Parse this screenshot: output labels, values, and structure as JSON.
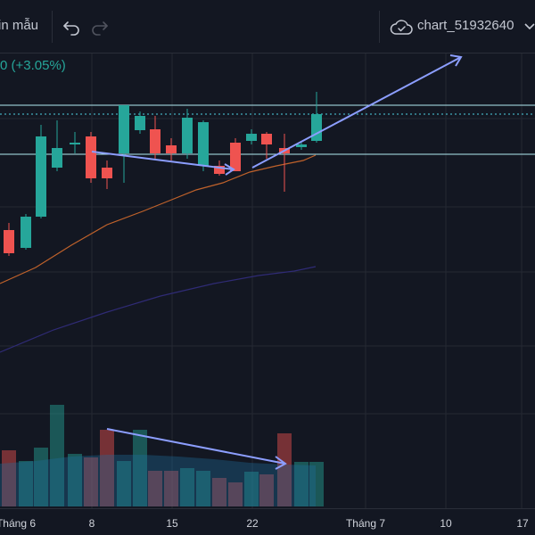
{
  "toolbar": {
    "template_label": "in mẫu",
    "chart_name": "chart_51932640"
  },
  "legend": {
    "change_text": "0 (+3.05%)"
  },
  "colors": {
    "background": "#131722",
    "grid": "#262a35",
    "up": "#26a69a",
    "down": "#ef5350",
    "ma_fast": "#c0622b",
    "ma_slow": "#2f2b75",
    "level_line": "#b2ebf2",
    "level_line_dashed": "#4dd0e1",
    "arrow": "#8c9eff",
    "positive_text": "#26a69a"
  },
  "icons": {
    "undo": "undo-icon",
    "redo": "redo-icon",
    "cloud": "cloud-icon",
    "chevron": "chevron-down-icon"
  },
  "axis": {
    "ticks": [
      "Tháng 6",
      "8",
      "15",
      "22",
      "Tháng 7",
      "10",
      "17"
    ]
  },
  "candles": [
    {
      "dir": "down"
    },
    {
      "dir": "up"
    },
    {
      "dir": "up"
    },
    {
      "dir": "up"
    },
    {
      "dir": "up"
    },
    {
      "dir": "down"
    },
    {
      "dir": "down"
    },
    {
      "dir": "up"
    },
    {
      "dir": "up"
    },
    {
      "dir": "down"
    },
    {
      "dir": "down"
    },
    {
      "dir": "up"
    },
    {
      "dir": "up"
    },
    {
      "dir": "down"
    },
    {
      "dir": "down"
    },
    {
      "dir": "up"
    },
    {
      "dir": "down"
    },
    {
      "dir": "down"
    },
    {
      "dir": "up"
    },
    {
      "dir": "up"
    }
  ],
  "volume": [
    {
      "dir": "down",
      "level": 0.55
    },
    {
      "dir": "up",
      "level": 0.45
    },
    {
      "dir": "up",
      "level": 0.58
    },
    {
      "dir": "up",
      "level": 1.0
    },
    {
      "dir": "up",
      "level": 0.52
    },
    {
      "dir": "down",
      "level": 0.48
    },
    {
      "dir": "down",
      "level": 0.75
    },
    {
      "dir": "up",
      "level": 0.45
    },
    {
      "dir": "up",
      "level": 0.75
    },
    {
      "dir": "down",
      "level": 0.35
    },
    {
      "dir": "down",
      "level": 0.35
    },
    {
      "dir": "up",
      "level": 0.38
    },
    {
      "dir": "up",
      "level": 0.35
    },
    {
      "dir": "down",
      "level": 0.28
    },
    {
      "dir": "down",
      "level": 0.24
    },
    {
      "dir": "up",
      "level": 0.34
    },
    {
      "dir": "down",
      "level": 0.32
    },
    {
      "dir": "down",
      "level": 0.72
    },
    {
      "dir": "up",
      "level": 0.44
    },
    {
      "dir": "up",
      "level": 0.44
    }
  ]
}
